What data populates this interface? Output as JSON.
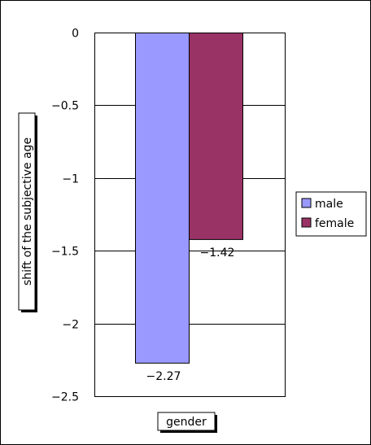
{
  "chart_data": {
    "type": "bar",
    "title": "",
    "xlabel": "gender",
    "ylabel": "shift of the subjective age",
    "ylim": [
      -2.5,
      0
    ],
    "yticks": [
      0,
      -0.5,
      -1,
      -1.5,
      -2,
      -2.5
    ],
    "ytick_labels": [
      "0",
      "−0.5",
      "−1",
      "−1.5",
      "−2",
      "−2.5"
    ],
    "grid": true,
    "legend_position": "right",
    "series": [
      {
        "name": "male",
        "value": -2.27,
        "label": "−2.27",
        "color": "#9999ff"
      },
      {
        "name": "female",
        "value": -1.42,
        "label": "−1.42",
        "color": "#993366"
      }
    ]
  }
}
